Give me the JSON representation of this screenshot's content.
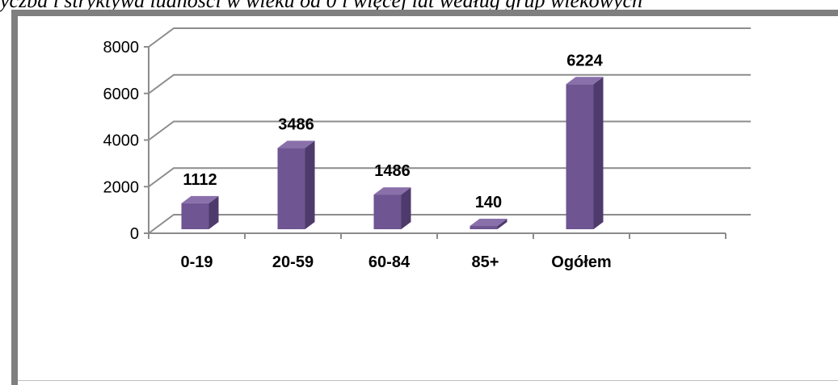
{
  "header": {
    "cropped_text": "yczba i stryktywa ludności w wieku od 0 i więcej lat według grup wiekowych"
  },
  "chart_data": {
    "type": "bar",
    "categories": [
      "0-19",
      "20-59",
      "60-84",
      "85+",
      "Ogółem"
    ],
    "values": [
      1112,
      3486,
      1486,
      140,
      6224
    ],
    "data_labels": [
      "1112",
      "3486",
      "1486",
      "140",
      "6224"
    ],
    "ylim": [
      0,
      8000
    ],
    "yticks": [
      0,
      2000,
      4000,
      6000,
      8000
    ],
    "ytick_labels": [
      "0",
      "2000",
      "4000",
      "6000",
      "8000"
    ],
    "grid": true,
    "style": "3d-column",
    "colors": {
      "bar_front": "#6f5592",
      "bar_side": "#4e3a6b",
      "bar_top": "#8a70ab",
      "grid": "#8c8c8c",
      "frame": "#7f7f7f"
    }
  }
}
